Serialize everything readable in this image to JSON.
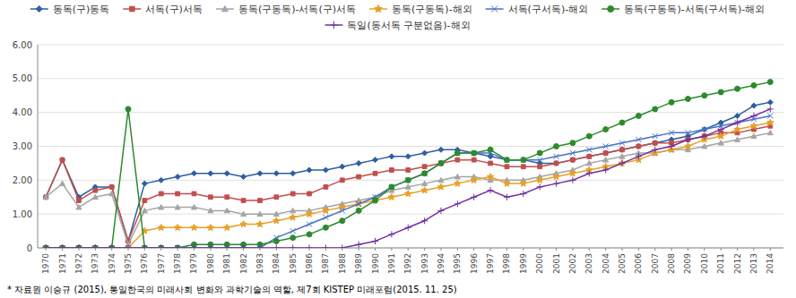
{
  "chart_data": {
    "type": "line",
    "x": [
      1970,
      1971,
      1972,
      1973,
      1974,
      1975,
      1976,
      1977,
      1978,
      1979,
      1980,
      1981,
      1982,
      1983,
      1984,
      1985,
      1986,
      1987,
      1988,
      1989,
      1990,
      1991,
      1992,
      1993,
      1994,
      1995,
      1996,
      1997,
      1998,
      1999,
      2000,
      2001,
      2002,
      2003,
      2004,
      2005,
      2006,
      2007,
      2008,
      2009,
      2010,
      2011,
      2012,
      2013,
      2014
    ],
    "series": [
      {
        "name": "동독(구)동독",
        "color": "#2e5fa3",
        "marker": "diamond",
        "values": [
          1.5,
          2.6,
          1.5,
          1.8,
          1.8,
          0.2,
          1.9,
          2.0,
          2.1,
          2.2,
          2.2,
          2.2,
          2.1,
          2.2,
          2.2,
          2.2,
          2.3,
          2.3,
          2.4,
          2.5,
          2.6,
          2.7,
          2.7,
          2.8,
          2.9,
          2.9,
          2.8,
          2.7,
          2.6,
          2.6,
          2.5,
          2.5,
          2.6,
          2.7,
          2.8,
          2.9,
          3.0,
          3.1,
          3.2,
          3.3,
          3.5,
          3.7,
          3.9,
          4.2,
          4.3
        ]
      },
      {
        "name": "서독(구)서독",
        "color": "#c0504d",
        "marker": "square",
        "values": [
          1.5,
          2.6,
          1.4,
          1.7,
          1.8,
          0.2,
          1.4,
          1.6,
          1.6,
          1.6,
          1.5,
          1.5,
          1.4,
          1.4,
          1.5,
          1.6,
          1.6,
          1.8,
          2.0,
          2.1,
          2.2,
          2.3,
          2.3,
          2.4,
          2.5,
          2.6,
          2.6,
          2.5,
          2.4,
          2.4,
          2.4,
          2.5,
          2.6,
          2.7,
          2.8,
          2.9,
          3.0,
          3.1,
          3.1,
          3.2,
          3.3,
          3.4,
          3.4,
          3.5,
          3.6
        ]
      },
      {
        "name": "동독(구동독)-서독(구)서독",
        "color": "#a5a5a5",
        "marker": "triangle",
        "values": [
          1.5,
          1.9,
          1.2,
          1.5,
          1.6,
          0.1,
          1.1,
          1.2,
          1.2,
          1.2,
          1.1,
          1.1,
          1.0,
          1.0,
          1.0,
          1.1,
          1.1,
          1.2,
          1.3,
          1.4,
          1.5,
          1.7,
          1.8,
          1.9,
          2.0,
          2.1,
          2.1,
          2.0,
          2.0,
          2.0,
          2.1,
          2.2,
          2.3,
          2.5,
          2.6,
          2.7,
          2.8,
          2.8,
          2.9,
          2.9,
          3.0,
          3.1,
          3.2,
          3.3,
          3.4
        ]
      },
      {
        "name": "동독(구동독)-해외",
        "color": "#e8a028",
        "marker": "star",
        "values": [
          0.0,
          0.0,
          0.0,
          0.0,
          0.0,
          0.0,
          0.5,
          0.6,
          0.6,
          0.6,
          0.6,
          0.6,
          0.7,
          0.7,
          0.8,
          0.9,
          1.0,
          1.1,
          1.2,
          1.3,
          1.4,
          1.5,
          1.6,
          1.7,
          1.8,
          1.9,
          2.0,
          2.1,
          1.9,
          1.9,
          2.0,
          2.1,
          2.2,
          2.3,
          2.4,
          2.5,
          2.6,
          2.8,
          2.9,
          3.0,
          3.2,
          3.3,
          3.5,
          3.6,
          3.7
        ]
      },
      {
        "name": "서독(구서독)-해외",
        "color": "#4472c4",
        "marker": "x",
        "values": [
          0.0,
          0.0,
          0.0,
          0.0,
          0.0,
          0.0,
          0.0,
          0.0,
          0.0,
          0.0,
          0.0,
          0.0,
          0.0,
          0.0,
          0.3,
          0.5,
          0.7,
          0.9,
          1.1,
          1.3,
          1.5,
          1.8,
          2.0,
          2.2,
          2.5,
          2.8,
          2.8,
          2.8,
          2.6,
          2.6,
          2.6,
          2.7,
          2.8,
          2.9,
          3.0,
          3.1,
          3.2,
          3.3,
          3.4,
          3.4,
          3.5,
          3.6,
          3.7,
          3.8,
          3.9
        ]
      },
      {
        "name": "동독(구동독)-서독(구서독)-해외",
        "color": "#2d8a2d",
        "marker": "circle",
        "values": [
          0.0,
          0.0,
          0.0,
          0.0,
          0.0,
          4.1,
          0.0,
          0.0,
          0.0,
          0.1,
          0.1,
          0.1,
          0.1,
          0.1,
          0.2,
          0.3,
          0.4,
          0.6,
          0.8,
          1.1,
          1.4,
          1.8,
          2.0,
          2.2,
          2.5,
          2.8,
          2.8,
          2.9,
          2.6,
          2.6,
          2.8,
          3.0,
          3.1,
          3.3,
          3.5,
          3.7,
          3.9,
          4.1,
          4.3,
          4.4,
          4.5,
          4.6,
          4.7,
          4.8,
          4.9
        ]
      },
      {
        "name": "독일(동서독 구분없음)-해외",
        "color": "#7030a0",
        "marker": "plus",
        "values": [
          0.0,
          0.0,
          0.0,
          0.0,
          0.0,
          0.0,
          0.0,
          0.0,
          0.0,
          0.0,
          0.0,
          0.0,
          0.0,
          0.0,
          0.0,
          0.0,
          0.0,
          0.0,
          0.0,
          0.1,
          0.2,
          0.4,
          0.6,
          0.8,
          1.1,
          1.3,
          1.5,
          1.7,
          1.5,
          1.6,
          1.8,
          1.9,
          2.0,
          2.2,
          2.3,
          2.5,
          2.7,
          2.9,
          3.0,
          3.2,
          3.3,
          3.5,
          3.7,
          3.9,
          4.1
        ]
      }
    ],
    "xlim": [
      1969.5,
      2014.8
    ],
    "xticks": [
      1970,
      1971,
      1972,
      1973,
      1974,
      1975,
      1976,
      1977,
      1978,
      1979,
      1980,
      1981,
      1982,
      1983,
      1984,
      1985,
      1986,
      1987,
      1988,
      1989,
      1990,
      1991,
      1992,
      1993,
      1994,
      1995,
      1996,
      1997,
      1998,
      1999,
      2000,
      2001,
      2002,
      2003,
      2004,
      2005,
      2006,
      2007,
      2008,
      2009,
      2010,
      2011,
      2012,
      2013,
      2014
    ],
    "ylim": [
      0,
      6.0
    ],
    "yticks": [
      0,
      {
        "value": 1,
        "label": "1.00"
      },
      {
        "value": 2,
        "label": "2.00"
      },
      {
        "value": 3,
        "label": "3.00"
      },
      {
        "value": 4,
        "label": "4.00"
      },
      {
        "value": 5,
        "label": "5.00"
      },
      {
        "value": 6,
        "label": "6.00"
      }
    ],
    "grid": true,
    "legend": "top",
    "annotations": [
      "* 자료원 이승규 (2015), 통일한국의 미래사회 변화와 과학기술의 역할, 제7회 KISTEP 미래포럼(2015. 11. 25)"
    ]
  }
}
